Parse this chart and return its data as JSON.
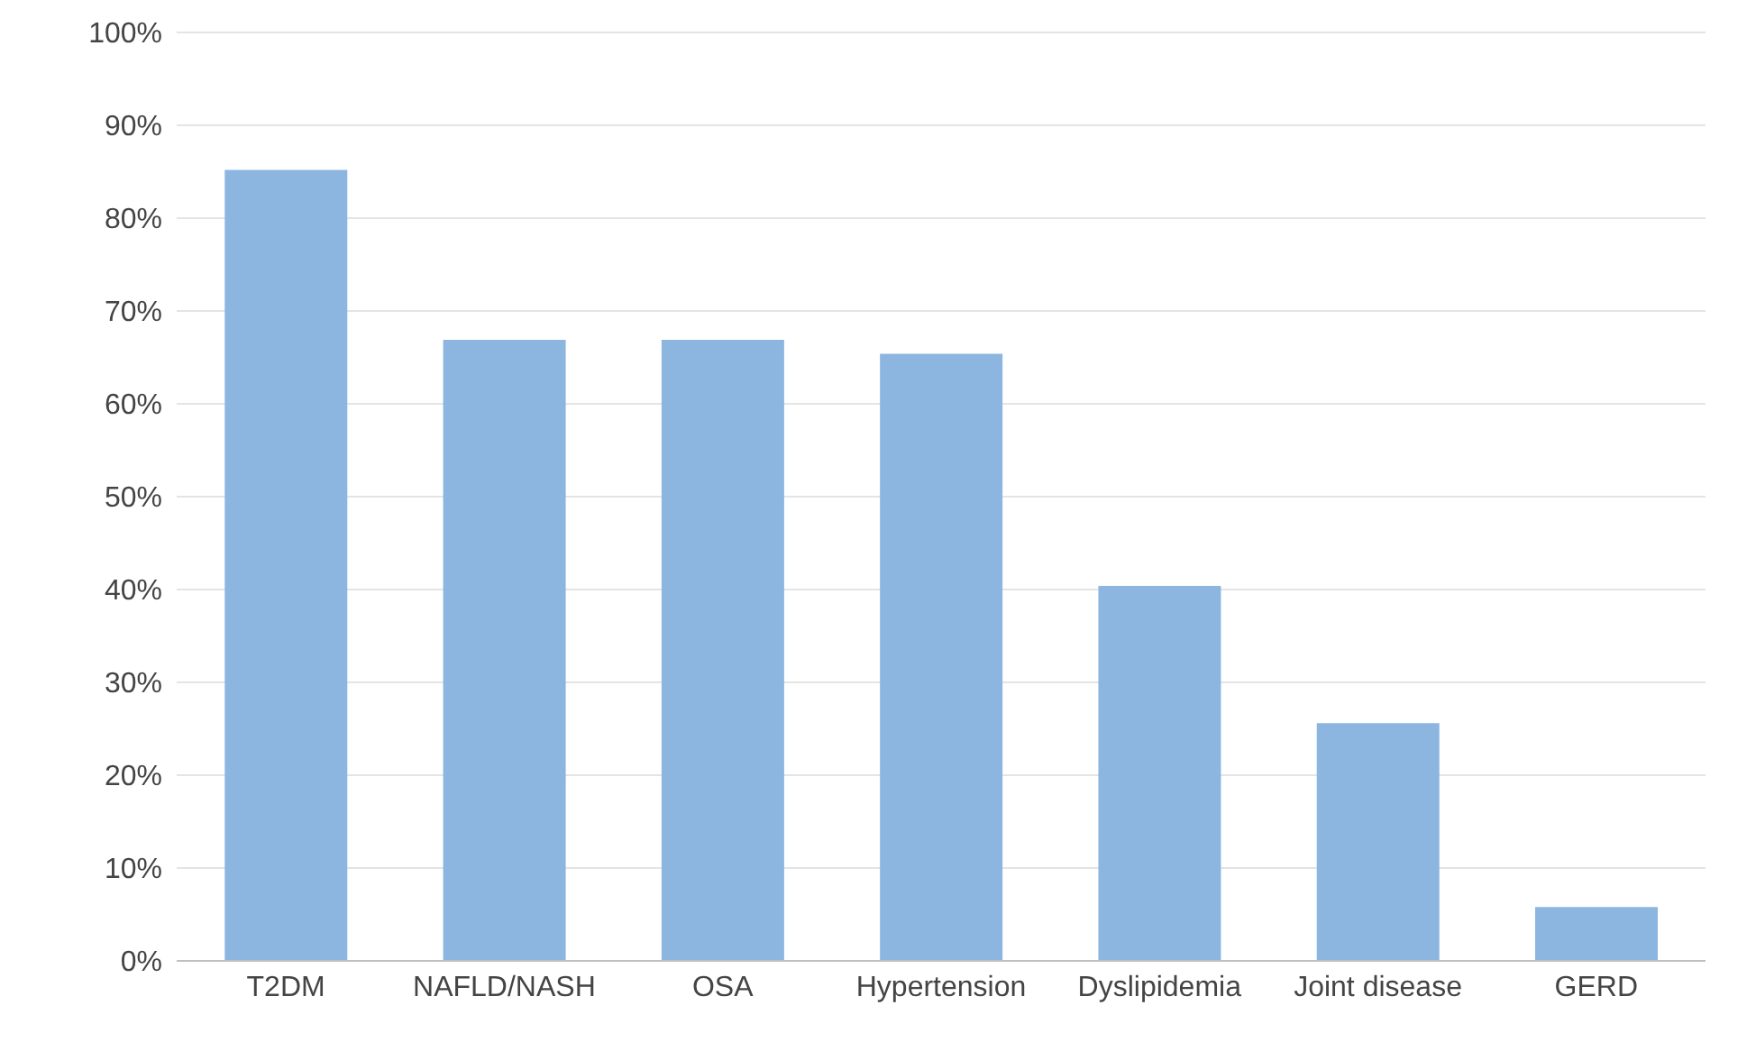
{
  "chart_data": {
    "type": "bar",
    "categories": [
      "T2DM",
      "NAFLD/NASH",
      "OSA",
      "Hypertension",
      "Dyslipidemia",
      "Joint disease",
      "GERD"
    ],
    "values": [
      85.2,
      66.9,
      66.9,
      65.4,
      40.4,
      25.6,
      5.8
    ],
    "color": "#8cb6e0",
    "ylim": [
      0,
      100
    ],
    "yticks": [
      {
        "value": 0,
        "label": "0%"
      },
      {
        "value": 10,
        "label": "10%"
      },
      {
        "value": 20,
        "label": "20%"
      },
      {
        "value": 30,
        "label": "30%"
      },
      {
        "value": 40,
        "label": "40%"
      },
      {
        "value": 50,
        "label": "50%"
      },
      {
        "value": 60,
        "label": "60%"
      },
      {
        "value": 70,
        "label": "70%"
      },
      {
        "value": 80,
        "label": "80%"
      },
      {
        "value": 90,
        "label": "90%"
      },
      {
        "value": 100,
        "label": "100%"
      }
    ],
    "grid": "y"
  }
}
